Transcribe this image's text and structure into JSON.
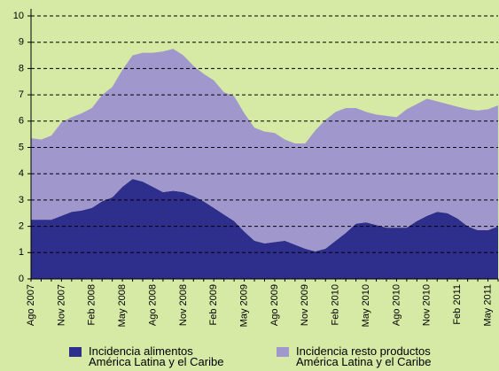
{
  "chart_data": {
    "type": "stacked_area",
    "categories": [
      "Ago 2007",
      null,
      null,
      "Nov 2007",
      null,
      null,
      "Feb 2008",
      null,
      null,
      "May 2008",
      null,
      null,
      "Ago 2008",
      null,
      null,
      "Nov 2008",
      null,
      null,
      "Feb 2009",
      null,
      null,
      "May 2009",
      null,
      null,
      "Ago 2009",
      null,
      null,
      "Nov 2009",
      null,
      null,
      "Feb 2010",
      null,
      null,
      "May 2010",
      null,
      null,
      "Ago 2010",
      null,
      null,
      "Nov 2010",
      null,
      null,
      "Feb 2011",
      null,
      null,
      "May 2011",
      null
    ],
    "series": [
      {
        "name": "Incidencia alimentos\nAmérica Latina y el Caribe",
        "color": "#2e2e8c",
        "values": [
          2.25,
          2.25,
          2.25,
          2.4,
          2.55,
          2.6,
          2.7,
          2.95,
          3.1,
          3.5,
          3.8,
          3.7,
          3.5,
          3.3,
          3.35,
          3.3,
          3.15,
          2.95,
          2.7,
          2.45,
          2.2,
          1.8,
          1.45,
          1.35,
          1.4,
          1.45,
          1.3,
          1.15,
          1.05,
          1.15,
          1.45,
          1.75,
          2.1,
          2.15,
          2.05,
          1.95,
          1.95,
          1.95,
          2.2,
          2.4,
          2.55,
          2.5,
          2.3,
          2.0,
          1.85,
          1.85,
          2.0
        ]
      },
      {
        "name": "Incidencia resto productos\nAmérica Latina y el Caribe",
        "color": "#a098cc",
        "values": [
          3.1,
          3.05,
          3.2,
          3.55,
          3.6,
          3.7,
          3.8,
          4.05,
          4.2,
          4.45,
          4.7,
          4.9,
          5.1,
          5.35,
          5.4,
          5.2,
          4.95,
          4.85,
          4.85,
          4.65,
          4.75,
          4.5,
          4.3,
          4.25,
          4.15,
          3.85,
          3.85,
          4.0,
          4.6,
          4.9,
          4.9,
          4.75,
          4.4,
          4.2,
          4.2,
          4.25,
          4.2,
          4.5,
          4.45,
          4.45,
          4.2,
          4.15,
          4.25,
          4.45,
          4.55,
          4.6,
          4.6
        ]
      }
    ],
    "ylim": [
      0,
      10
    ],
    "yticks": [
      0,
      1,
      2,
      3,
      4,
      5,
      6,
      7,
      8,
      9,
      10
    ],
    "grid": true,
    "legend": "bottom",
    "background": "#d6e9a5"
  }
}
